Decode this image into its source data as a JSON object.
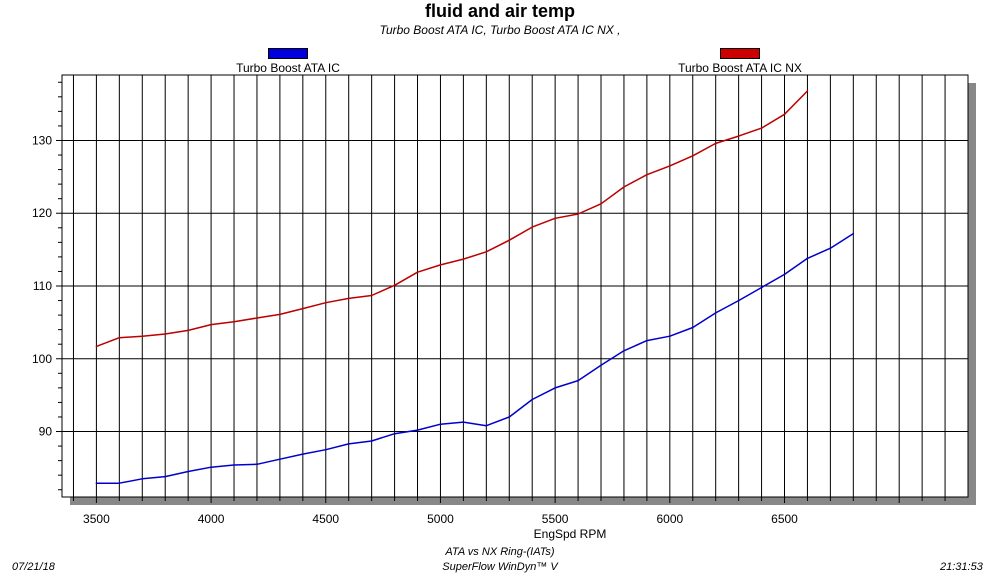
{
  "chart_data": {
    "type": "line",
    "title": "fluid and air temp",
    "subtitle": "Turbo Boost ATA IC, Turbo Boost ATA IC NX ,",
    "xlabel": "EngSpd RPM",
    "ylabel": "",
    "xlim": [
      3350,
      7300
    ],
    "ylim": [
      81,
      139
    ],
    "x_ticks": [
      3500,
      4000,
      4500,
      5000,
      5500,
      6000,
      6500
    ],
    "y_ticks": [
      90,
      100,
      110,
      120,
      130
    ],
    "grid": true,
    "legend_position": "top",
    "series": [
      {
        "name": "Turbo Boost ATA IC",
        "color": "#0000cc",
        "x": [
          3500,
          3600,
          3700,
          3800,
          3900,
          4000,
          4100,
          4200,
          4300,
          4400,
          4500,
          4600,
          4700,
          4800,
          4900,
          5000,
          5100,
          5200,
          5300,
          5400,
          5500,
          5600,
          5700,
          5800,
          5900,
          6000,
          6100,
          6200,
          6300,
          6400,
          6500,
          6600,
          6700,
          6800
        ],
        "y": [
          82.9,
          82.9,
          83.5,
          83.8,
          84.5,
          85.1,
          85.4,
          85.5,
          86.2,
          86.9,
          87.5,
          88.3,
          88.7,
          89.7,
          90.2,
          91.0,
          91.3,
          90.8,
          92.0,
          94.4,
          96.0,
          97.0,
          99.1,
          101.1,
          102.5,
          103.1,
          104.3,
          106.3,
          108.0,
          109.8,
          111.6,
          113.8,
          115.2,
          117.2
        ]
      },
      {
        "name": "Turbo Boost ATA IC NX",
        "color": "#bb0000",
        "x": [
          3500,
          3600,
          3700,
          3800,
          3900,
          4000,
          4100,
          4200,
          4300,
          4400,
          4500,
          4600,
          4700,
          4800,
          4900,
          5000,
          5100,
          5200,
          5300,
          5400,
          5500,
          5600,
          5700,
          5800,
          5900,
          6000,
          6100,
          6200,
          6300,
          6400,
          6500,
          6600
        ],
        "y": [
          101.7,
          102.9,
          103.1,
          103.4,
          103.9,
          104.7,
          105.1,
          105.6,
          106.1,
          106.9,
          107.7,
          108.3,
          108.7,
          110.1,
          111.9,
          112.9,
          113.7,
          114.7,
          116.3,
          118.1,
          119.3,
          119.9,
          121.3,
          123.6,
          125.3,
          126.5,
          127.9,
          129.6,
          130.6,
          131.7,
          133.6,
          136.8
        ]
      }
    ]
  },
  "footer": {
    "date": "07/21/18",
    "time": "21:31:53",
    "run_title": "ATA vs NX Ring-(IATs)",
    "software": "SuperFlow WinDyn™ V"
  }
}
